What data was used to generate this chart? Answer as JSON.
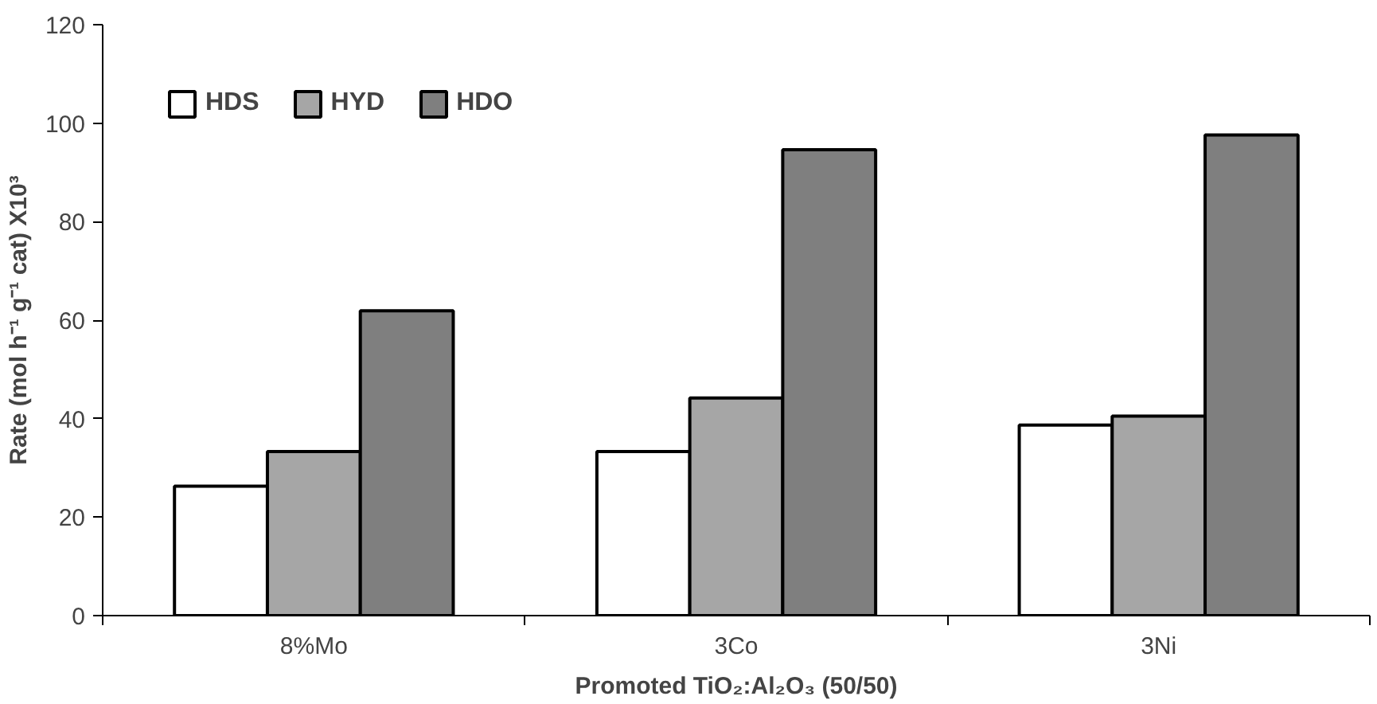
{
  "chart_data": {
    "type": "bar",
    "xlabel": "Promoted TiO₂:Al₂O₃ (50/50)",
    "ylabel": "Rate (mol h⁻¹ g⁻¹ cat) X10³",
    "categories": [
      "8%Mo",
      "3Co",
      "3Ni"
    ],
    "series": [
      {
        "name": "HDS",
        "color": "#ffffff",
        "values": [
          26.3,
          33.3,
          38.7
        ]
      },
      {
        "name": "HYD",
        "color": "#a6a6a6",
        "values": [
          33.3,
          44.2,
          40.5
        ]
      },
      {
        "name": "HDO",
        "color": "#7f7f7f",
        "values": [
          61.9,
          94.6,
          97.6
        ]
      }
    ],
    "ylim": [
      0,
      120
    ],
    "yticks": [
      0,
      20,
      40,
      60,
      80,
      100,
      120
    ],
    "grid": false,
    "legend": "top left"
  }
}
